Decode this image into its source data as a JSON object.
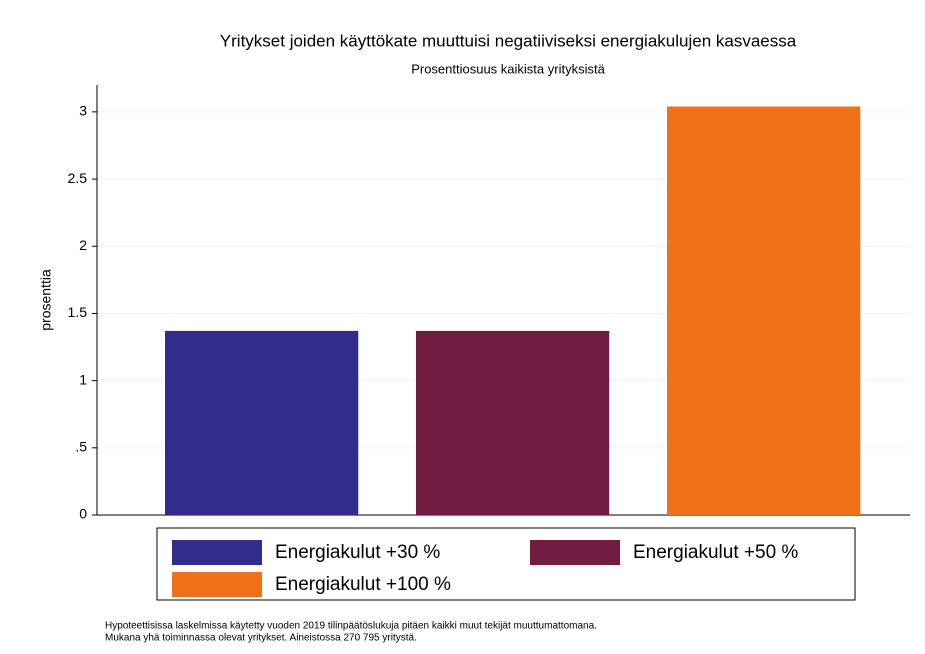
{
  "chart_data": {
    "type": "bar",
    "title": "Yritykset joiden käyttökate muuttuisi negatiiviseksi energiakulujen kasvaessa",
    "subtitle": "Prosenttiosuus kaikista yrityksistä",
    "y_label": "prosenttia",
    "categories": [
      null
    ],
    "series": [
      {
        "name": "Energiakulut +30 %",
        "color": "#312c8d",
        "values": [
          1.37
        ]
      },
      {
        "name": "Energiakulut +50 %",
        "color": "#731c42",
        "values": [
          1.37
        ]
      },
      {
        "name": "Energiakulut +100 %",
        "color": "#f0711a",
        "values": [
          3.04
        ]
      }
    ],
    "ylim": [
      0,
      3.2
    ],
    "yticks": [
      0,
      {
        "value": 0.5,
        "label": ".5"
      },
      1,
      1.5,
      2,
      2.5,
      3
    ],
    "grid": true,
    "legend": "bottom",
    "notes": [
      "Hypoteettisissa laskelmissa käytetty vuoden 2019 tilinpäätöslukuja pitäen kaikki muut tekijät muuttumattomana.",
      "Mukana yhä toiminnassa olevat yritykset. Aineistossa 270 795 yritystä."
    ]
  }
}
